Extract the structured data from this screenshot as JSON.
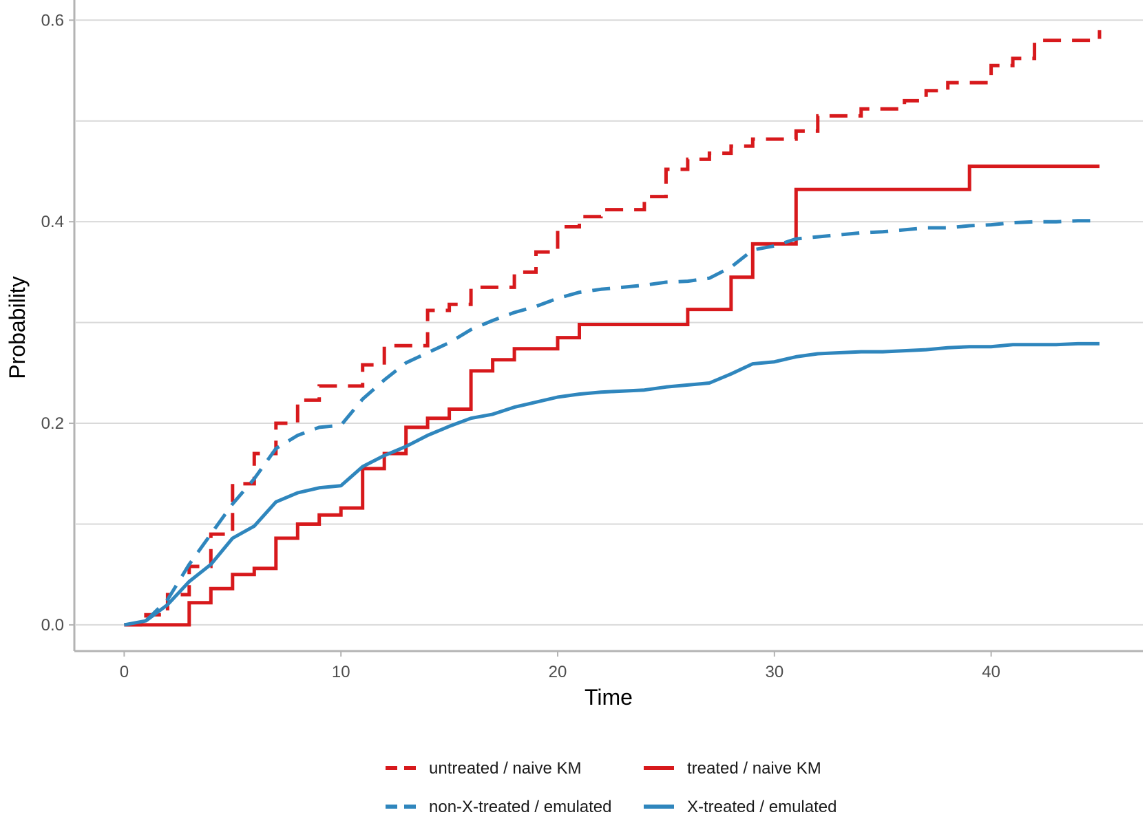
{
  "chart_data": {
    "type": "line",
    "title": "",
    "xlabel": "Time",
    "ylabel": "Probability",
    "xlim": [
      -2.3,
      47.0
    ],
    "ylim": [
      -0.026,
      0.62
    ],
    "x_ticks": [
      0,
      10,
      20,
      30,
      40
    ],
    "x_tick_labels": [
      "0",
      "10",
      "20",
      "30",
      "40"
    ],
    "y_ticks": [
      0.0,
      0.2,
      0.4,
      0.6
    ],
    "y_tick_labels": [
      "0.0",
      "0.2",
      "0.4",
      "0.6"
    ],
    "y_minor_grid": [
      0.1,
      0.3,
      0.5
    ],
    "grid": true,
    "legend_position": "bottom",
    "colors": {
      "red": "#d7191c",
      "blue": "#2f86bd",
      "grid": "#d9d9d9",
      "axis": "#b3b3b3"
    },
    "series": [
      {
        "name": "untreated / naive KM",
        "color": "#d7191c",
        "dash": "dashed",
        "step": true,
        "x": [
          0,
          1,
          2,
          3,
          4,
          5,
          6,
          7,
          8,
          9,
          11,
          12,
          14,
          15,
          16,
          18,
          19,
          20,
          21,
          22,
          24,
          25,
          26,
          27,
          28,
          29,
          31,
          32,
          34,
          36,
          37,
          38,
          40,
          41,
          42,
          43,
          45
        ],
        "values": [
          0.0,
          0.01,
          0.03,
          0.058,
          0.09,
          0.14,
          0.17,
          0.2,
          0.223,
          0.237,
          0.258,
          0.277,
          0.312,
          0.318,
          0.335,
          0.35,
          0.37,
          0.395,
          0.405,
          0.412,
          0.425,
          0.452,
          0.462,
          0.468,
          0.475,
          0.482,
          0.49,
          0.505,
          0.512,
          0.52,
          0.53,
          0.538,
          0.555,
          0.562,
          0.58,
          0.58,
          0.59
        ]
      },
      {
        "name": "treated / naive KM",
        "color": "#d7191c",
        "dash": "solid",
        "step": true,
        "x": [
          0,
          3,
          4,
          5,
          6,
          7,
          8,
          9,
          10,
          11,
          12,
          13,
          14,
          15,
          16,
          17,
          18,
          20,
          21,
          26,
          28,
          29,
          31,
          39,
          45
        ],
        "values": [
          0.0,
          0.022,
          0.036,
          0.05,
          0.056,
          0.086,
          0.1,
          0.109,
          0.116,
          0.155,
          0.17,
          0.196,
          0.205,
          0.214,
          0.252,
          0.263,
          0.274,
          0.285,
          0.298,
          0.313,
          0.345,
          0.378,
          0.432,
          0.455,
          0.455
        ]
      },
      {
        "name": "non-X-treated / emulated",
        "color": "#2f86bd",
        "dash": "dashed",
        "step": false,
        "x": [
          1,
          2,
          3,
          4,
          5,
          6,
          7,
          8,
          9,
          10,
          11,
          12,
          13,
          14,
          15,
          16,
          17,
          18,
          19,
          20,
          21,
          22,
          23,
          24,
          25,
          26,
          27,
          28,
          29,
          30,
          31,
          32,
          33,
          34,
          35,
          36,
          37,
          38,
          39,
          40,
          41,
          42,
          43,
          44,
          45
        ],
        "values": [
          0.004,
          0.025,
          0.06,
          0.09,
          0.12,
          0.145,
          0.175,
          0.188,
          0.196,
          0.198,
          0.224,
          0.243,
          0.26,
          0.27,
          0.28,
          0.293,
          0.302,
          0.31,
          0.316,
          0.324,
          0.33,
          0.333,
          0.335,
          0.337,
          0.34,
          0.341,
          0.344,
          0.355,
          0.372,
          0.376,
          0.383,
          0.385,
          0.387,
          0.389,
          0.39,
          0.392,
          0.394,
          0.394,
          0.396,
          0.397,
          0.399,
          0.4,
          0.4,
          0.401,
          0.401
        ]
      },
      {
        "name": "X-treated / emulated",
        "color": "#2f86bd",
        "dash": "solid",
        "step": false,
        "x": [
          0,
          1,
          2,
          3,
          4,
          5,
          6,
          7,
          8,
          9,
          10,
          11,
          12,
          13,
          14,
          15,
          16,
          17,
          18,
          19,
          20,
          21,
          22,
          23,
          24,
          25,
          26,
          27,
          28,
          29,
          30,
          31,
          32,
          33,
          34,
          35,
          36,
          37,
          38,
          39,
          40,
          41,
          42,
          43,
          44,
          45
        ],
        "values": [
          0.0,
          0.004,
          0.02,
          0.043,
          0.06,
          0.086,
          0.098,
          0.122,
          0.131,
          0.136,
          0.138,
          0.157,
          0.168,
          0.177,
          0.188,
          0.197,
          0.205,
          0.209,
          0.216,
          0.221,
          0.226,
          0.229,
          0.231,
          0.232,
          0.233,
          0.236,
          0.238,
          0.24,
          0.249,
          0.259,
          0.261,
          0.266,
          0.269,
          0.27,
          0.271,
          0.271,
          0.272,
          0.273,
          0.275,
          0.276,
          0.276,
          0.278,
          0.278,
          0.278,
          0.279,
          0.279
        ]
      }
    ]
  }
}
